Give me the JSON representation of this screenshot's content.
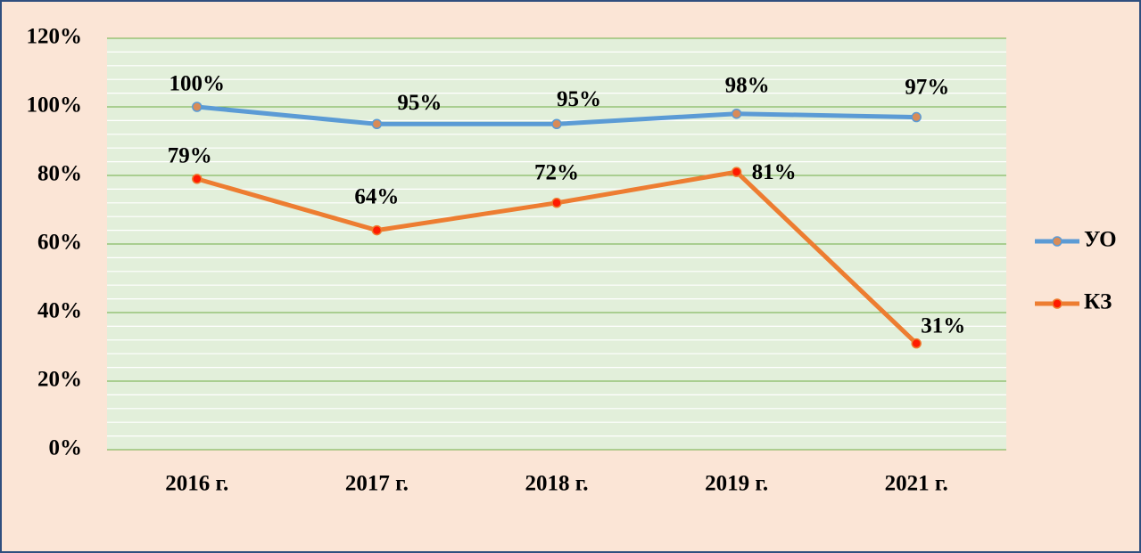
{
  "chart_data": {
    "type": "line",
    "categories": [
      "2016 г.",
      "2017 г.",
      "2018 г.",
      "2019 г.",
      "2021 г."
    ],
    "series": [
      {
        "name": "УО",
        "color": "#5b9bd5",
        "marker_color": "#d98b57",
        "values": [
          100,
          95,
          95,
          98,
          97
        ],
        "value_labels": [
          "100%",
          "95%",
          "95%",
          "98%",
          "97%"
        ]
      },
      {
        "name": "КЗ",
        "color": "#ed7d31",
        "marker_color": "#ff1a00",
        "values": [
          79,
          64,
          72,
          81,
          31
        ],
        "value_labels": [
          "79%",
          "64%",
          "72%",
          "81%",
          "31%"
        ]
      }
    ],
    "ylim": [
      0,
      120
    ],
    "yticks": [
      {
        "value": 0,
        "label": "0%"
      },
      {
        "value": 20,
        "label": "20%"
      },
      {
        "value": 40,
        "label": "40%"
      },
      {
        "value": 60,
        "label": "60%"
      },
      {
        "value": 80,
        "label": "80%"
      },
      {
        "value": 100,
        "label": "100%"
      },
      {
        "value": 120,
        "label": "120%"
      }
    ],
    "grid": true,
    "legend": "right"
  }
}
